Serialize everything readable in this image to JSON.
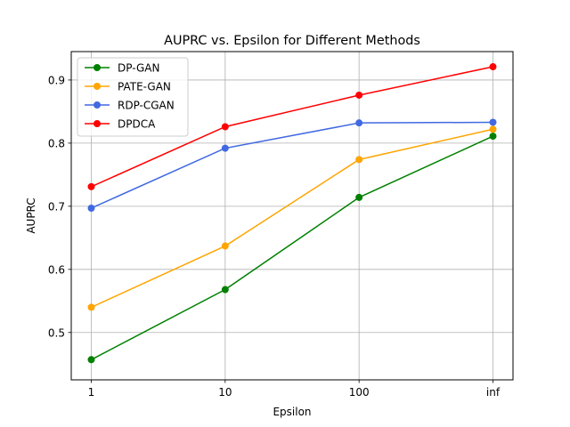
{
  "chart_data": {
    "type": "line",
    "title": "AUPRC vs. Epsilon for Different Methods",
    "xlabel": "Epsilon",
    "ylabel": "AUPRC",
    "categories": [
      "1",
      "10",
      "100",
      "inf"
    ],
    "ylim": [
      0.425,
      0.945
    ],
    "yticks": [
      0.5,
      0.6,
      0.7,
      0.8,
      0.9
    ],
    "grid": true,
    "legend_position": "top-left",
    "series": [
      {
        "name": "DP-GAN",
        "color": "#008000",
        "values": [
          0.457,
          0.568,
          0.714,
          0.811
        ]
      },
      {
        "name": "PATE-GAN",
        "color": "#FFA500",
        "values": [
          0.54,
          0.637,
          0.774,
          0.822
        ]
      },
      {
        "name": "RDP-CGAN",
        "color": "#4169E1",
        "values": [
          0.697,
          0.792,
          0.832,
          0.833
        ]
      },
      {
        "name": "DPDCA",
        "color": "#FF0000",
        "values": [
          0.731,
          0.826,
          0.876,
          0.921
        ]
      }
    ]
  }
}
